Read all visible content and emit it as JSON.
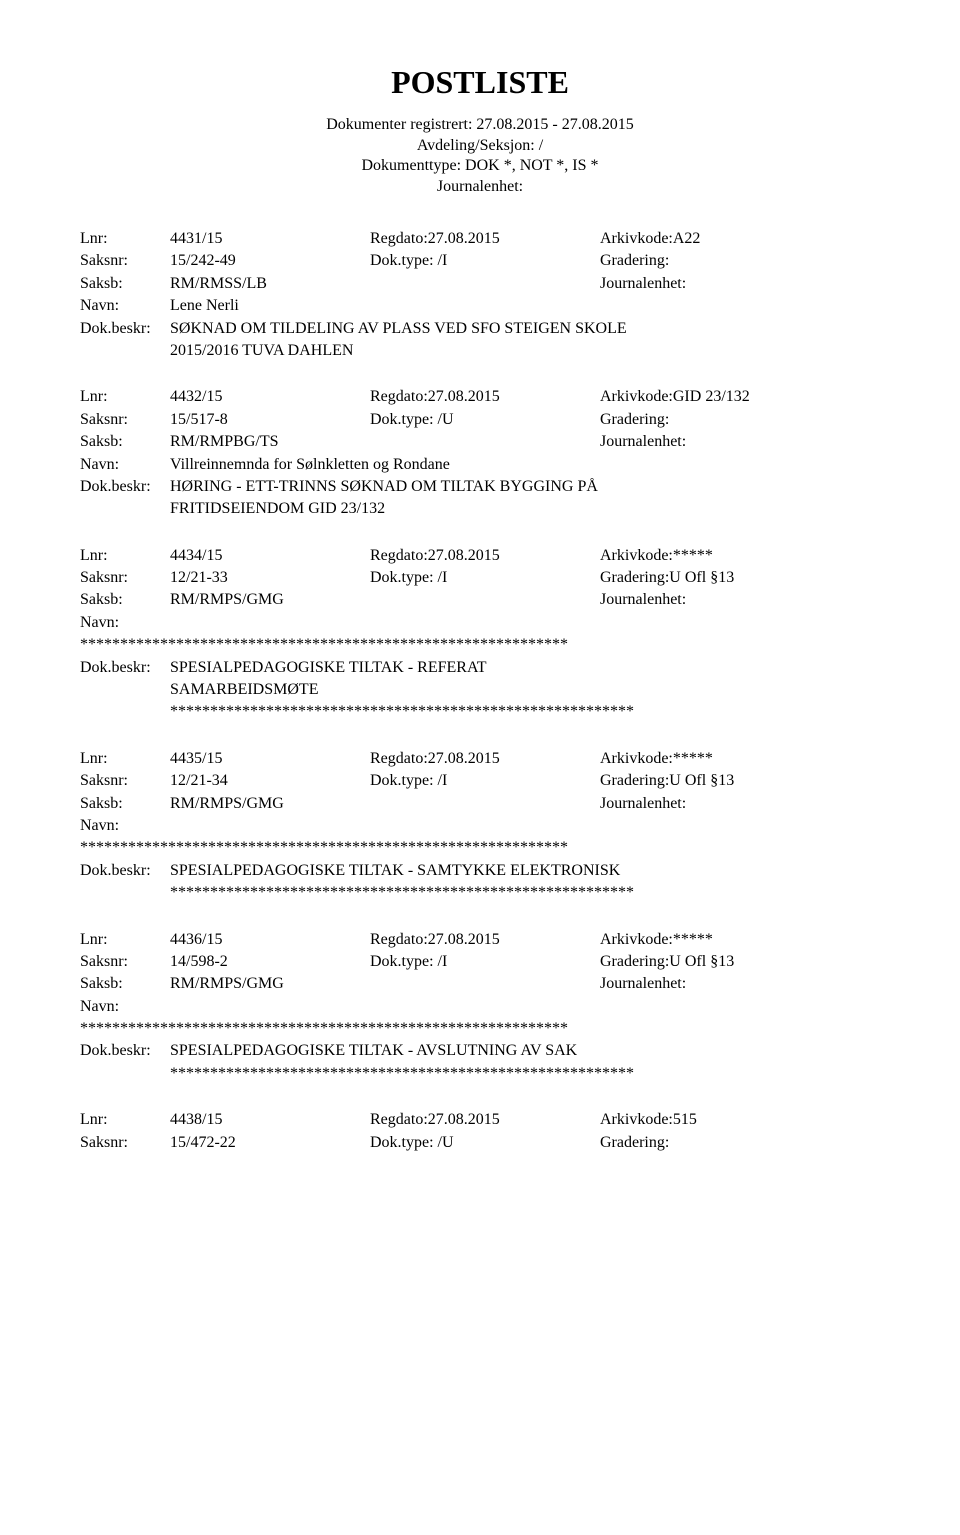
{
  "title": "POSTLISTE",
  "header": {
    "line1": "Dokumenter registrert: 27.08.2015 - 27.08.2015",
    "line2": "Avdeling/Seksjon: /",
    "line3": "Dokumenttype: DOK *, NOT *, IS *",
    "line4": "Journalenhet:"
  },
  "label": {
    "lnr": "Lnr:",
    "saksnr": "Saksnr:",
    "saksb": "Saksb:",
    "navn": "Navn:",
    "dokbeskr": "Dok.beskr:",
    "regdato": "Regdato:",
    "arkivkode": "Arkivkode:",
    "doktype": "Dok.type:",
    "gradering": "Gradering:",
    "journalenhet": "Journalenhet:"
  },
  "entries": [
    {
      "lnr": "4431/15",
      "regdato": "Regdato:27.08.2015",
      "arkivkode": "Arkivkode:A22",
      "saksnr": "15/242-49",
      "doktype": "Dok.type: /I",
      "gradering": "Gradering:",
      "saksb": "RM/RMSS/LB",
      "journalenhet": "Journalenhet:",
      "navn": "Lene Nerli",
      "beskr1": "SØKNAD OM TILDELING AV PLASS VED SFO STEIGEN SKOLE",
      "beskr2": "2015/2016 TUVA DAHLEN"
    },
    {
      "lnr": "4432/15",
      "regdato": "Regdato:27.08.2015",
      "arkivkode": "Arkivkode:GID 23/132",
      "saksnr": "15/517-8",
      "doktype": "Dok.type: /U",
      "gradering": "Gradering:",
      "saksb": "RM/RMPBG/TS",
      "journalenhet": "Journalenhet:",
      "navn": "Villreinnemnda for Sølnkletten og Rondane",
      "beskr1": "HØRING - ETT-TRINNS SØKNAD OM TILTAK BYGGING PÅ",
      "beskr2": "FRITIDSEIENDOM   GID 23/132"
    },
    {
      "lnr": "4434/15",
      "regdato": "Regdato:27.08.2015",
      "arkivkode": "Arkivkode:*****",
      "saksnr": "12/21-33",
      "doktype": "Dok.type: /I",
      "gradering": "Gradering:U Ofl §13",
      "saksb": "RM/RMPS/GMG",
      "journalenhet": "Journalenhet:",
      "stars1": "*************************************************************",
      "beskr1": "SPESIALPEDAGOGISKE TILTAK - REFERAT",
      "beskr2": "SAMARBEIDSMØTE",
      "stars2": "**********************************************************"
    },
    {
      "lnr": "4435/15",
      "regdato": "Regdato:27.08.2015",
      "arkivkode": "Arkivkode:*****",
      "saksnr": "12/21-34",
      "doktype": "Dok.type: /I",
      "gradering": "Gradering:U Ofl §13",
      "saksb": "RM/RMPS/GMG",
      "journalenhet": "Journalenhet:",
      "stars1": "*************************************************************",
      "beskr1": "SPESIALPEDAGOGISKE TILTAK - SAMTYKKE ELEKTRONISK",
      "stars2": "**********************************************************"
    },
    {
      "lnr": "4436/15",
      "regdato": "Regdato:27.08.2015",
      "arkivkode": "Arkivkode:*****",
      "saksnr": "14/598-2",
      "doktype": "Dok.type: /I",
      "gradering": "Gradering:U Ofl §13",
      "saksb": "RM/RMPS/GMG",
      "journalenhet": "Journalenhet:",
      "stars1": "*************************************************************",
      "beskr1": "SPESIALPEDAGOGISKE TILTAK - AVSLUTNING AV SAK",
      "stars2": "**********************************************************"
    },
    {
      "lnr": "4438/15",
      "regdato": "Regdato:27.08.2015",
      "arkivkode": "Arkivkode:515",
      "saksnr": "15/472-22",
      "doktype": "Dok.type: /U",
      "gradering": "Gradering:"
    }
  ]
}
